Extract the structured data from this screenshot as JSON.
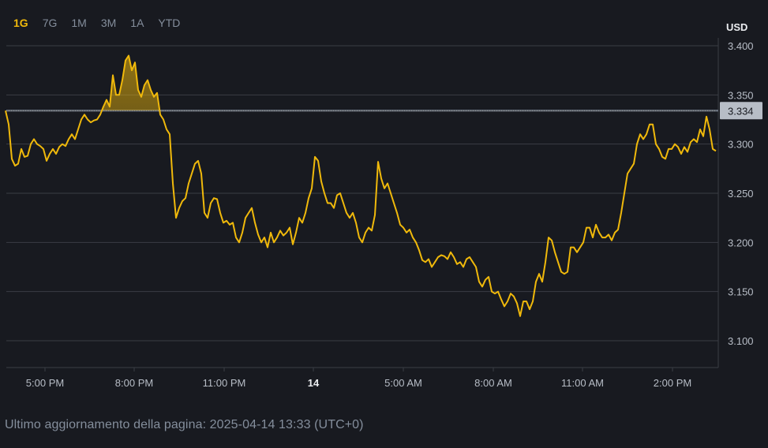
{
  "range_tabs": [
    {
      "label": "1G",
      "active": true
    },
    {
      "label": "7G",
      "active": false
    },
    {
      "label": "1M",
      "active": false
    },
    {
      "label": "3M",
      "active": false
    },
    {
      "label": "1A",
      "active": false
    },
    {
      "label": "YTD",
      "active": false
    }
  ],
  "footer": {
    "update_text": "Ultimo aggiornamento della pagina: 2025-04-14 13:33 (UTC+0)"
  },
  "colors": {
    "background": "#181a20",
    "line": "#f0b90b",
    "grid": "#3a3d45",
    "axis_text": "#b7bdc6",
    "current_badge_bg": "#b7bdc6",
    "current_badge_text": "#181a20"
  },
  "chart_data": {
    "type": "line",
    "unit_label": "USD",
    "current_value": 3.334,
    "current_label": "3.334",
    "ylim": [
      3.07,
      3.4
    ],
    "y_ticks": [
      3.1,
      3.15,
      3.2,
      3.25,
      3.3,
      3.35,
      3.4
    ],
    "y_tick_labels": [
      "3.100",
      "3.150",
      "3.200",
      "3.250",
      "3.300",
      "3.350",
      "3.400"
    ],
    "x_tick_labels": [
      "5:00 PM",
      "8:00 PM",
      "11:00 PM",
      "14",
      "5:00 AM",
      "8:00 AM",
      "11:00 AM",
      "2:00 PM"
    ],
    "grid": true,
    "series": [
      {
        "values": [
          3.334,
          3.32,
          3.285,
          3.278,
          3.28,
          3.295,
          3.287,
          3.288,
          3.3,
          3.305,
          3.3,
          3.298,
          3.295,
          3.283,
          3.29,
          3.295,
          3.29,
          3.297,
          3.3,
          3.298,
          3.305,
          3.31,
          3.305,
          3.315,
          3.325,
          3.33,
          3.325,
          3.322,
          3.324,
          3.325,
          3.33,
          3.338,
          3.345,
          3.338,
          3.37,
          3.35,
          3.35,
          3.365,
          3.385,
          3.39,
          3.375,
          3.383,
          3.355,
          3.348,
          3.36,
          3.365,
          3.355,
          3.348,
          3.352,
          3.33,
          3.325,
          3.315,
          3.31,
          3.26,
          3.225,
          3.235,
          3.242,
          3.245,
          3.26,
          3.27,
          3.28,
          3.283,
          3.27,
          3.23,
          3.225,
          3.24,
          3.245,
          3.244,
          3.23,
          3.22,
          3.222,
          3.218,
          3.22,
          3.205,
          3.2,
          3.21,
          3.225,
          3.23,
          3.235,
          3.22,
          3.208,
          3.2,
          3.205,
          3.195,
          3.21,
          3.2,
          3.205,
          3.212,
          3.207,
          3.21,
          3.215,
          3.198,
          3.21,
          3.225,
          3.22,
          3.23,
          3.245,
          3.255,
          3.287,
          3.283,
          3.262,
          3.25,
          3.24,
          3.24,
          3.235,
          3.248,
          3.25,
          3.24,
          3.23,
          3.225,
          3.23,
          3.22,
          3.205,
          3.2,
          3.21,
          3.215,
          3.212,
          3.228,
          3.282,
          3.265,
          3.255,
          3.26,
          3.25,
          3.24,
          3.23,
          3.218,
          3.215,
          3.21,
          3.213,
          3.205,
          3.2,
          3.192,
          3.182,
          3.18,
          3.183,
          3.175,
          3.18,
          3.185,
          3.187,
          3.186,
          3.183,
          3.19,
          3.185,
          3.178,
          3.18,
          3.175,
          3.183,
          3.185,
          3.18,
          3.175,
          3.16,
          3.155,
          3.162,
          3.165,
          3.15,
          3.148,
          3.15,
          3.142,
          3.135,
          3.14,
          3.148,
          3.145,
          3.138,
          3.125,
          3.14,
          3.14,
          3.132,
          3.14,
          3.16,
          3.168,
          3.16,
          3.18,
          3.205,
          3.202,
          3.19,
          3.18,
          3.17,
          3.168,
          3.17,
          3.195,
          3.195,
          3.19,
          3.195,
          3.2,
          3.215,
          3.215,
          3.205,
          3.218,
          3.21,
          3.205,
          3.205,
          3.208,
          3.202,
          3.21,
          3.213,
          3.23,
          3.25,
          3.27,
          3.275,
          3.28,
          3.3,
          3.31,
          3.305,
          3.31,
          3.32,
          3.32,
          3.3,
          3.295,
          3.287,
          3.285,
          3.295,
          3.295,
          3.3,
          3.297,
          3.29,
          3.297,
          3.292,
          3.302,
          3.305,
          3.302,
          3.315,
          3.308,
          3.328,
          3.315,
          3.295,
          3.293
        ]
      }
    ]
  }
}
